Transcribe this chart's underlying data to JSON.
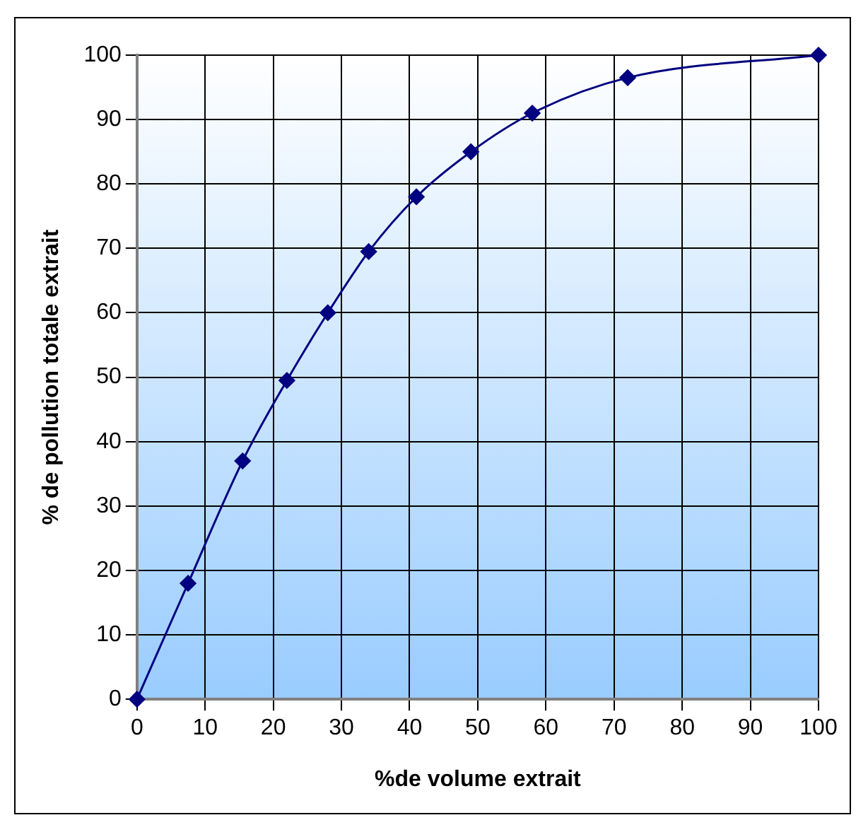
{
  "chart_data": {
    "type": "line",
    "xlabel": "%de volume extrait",
    "ylabel": "% de pollution totale extrait",
    "x": [
      0,
      7.5,
      15.5,
      22,
      28,
      34,
      41,
      49,
      58,
      72,
      100
    ],
    "series": [
      {
        "color": "#000080",
        "values": [
          0,
          18,
          37,
          49.5,
          60,
          69.5,
          78,
          85,
          91,
          96.5,
          100
        ]
      }
    ],
    "xlim": [
      0,
      100
    ],
    "xticks": [
      0,
      10,
      20,
      30,
      40,
      50,
      60,
      70,
      80,
      90,
      100
    ],
    "ylim": [
      0,
      100
    ],
    "yticks": [
      0,
      10,
      20,
      30,
      40,
      50,
      60,
      70,
      80,
      90,
      100
    ],
    "grid": true,
    "legend": false,
    "marker": "diamond",
    "line_style": "solid"
  }
}
